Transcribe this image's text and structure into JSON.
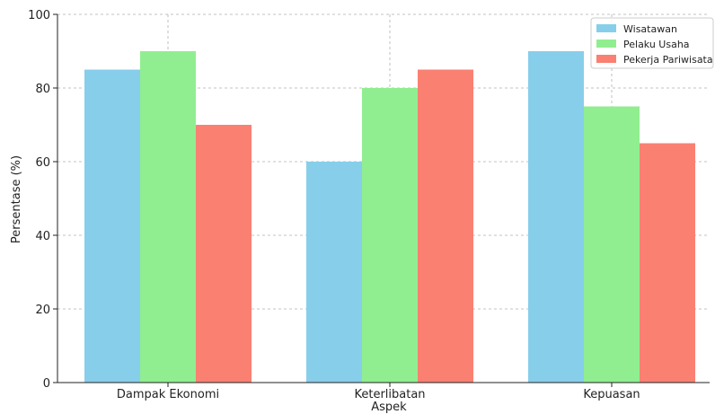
{
  "chart_data": {
    "type": "bar",
    "title": "",
    "xlabel": "Aspek",
    "ylabel": "Persentase (%)",
    "categories": [
      "Dampak Ekonomi",
      "Keterlibatan",
      "Kepuasan"
    ],
    "series": [
      {
        "name": "Wisatawan",
        "values": [
          85,
          60,
          90
        ],
        "color": "#87ceeb"
      },
      {
        "name": "Pelaku Usaha",
        "values": [
          90,
          80,
          75
        ],
        "color": "#90ee90"
      },
      {
        "name": "Pekerja Pariwisata",
        "values": [
          70,
          85,
          65
        ],
        "color": "#fa8072"
      }
    ],
    "ylim": [
      0,
      100
    ],
    "yticks": [
      "0",
      "20",
      "40",
      "60",
      "80",
      "100"
    ],
    "grid": true,
    "legend_position": "top-right"
  }
}
